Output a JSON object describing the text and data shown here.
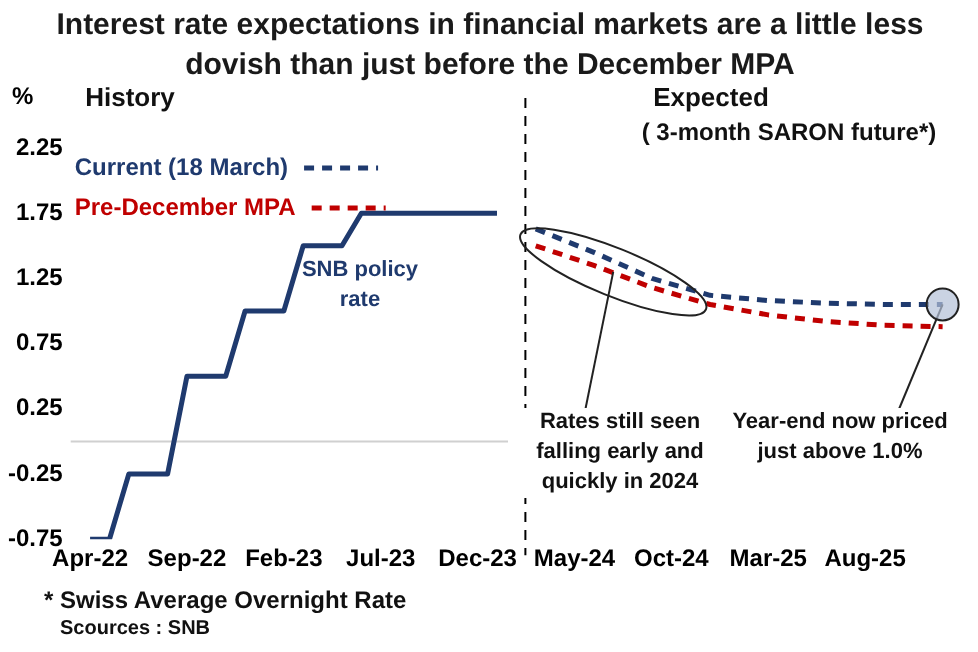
{
  "chart_data": {
    "type": "line",
    "title": "Interest rate expectations in financial markets are a little less dovish than just before the December MPA",
    "ylabel": "%",
    "annotations": [
      "History",
      "Expected",
      "( 3-month SARON future*)",
      "SNB policy rate",
      {
        "text": "Rates still seen falling early and quickly in 2024",
        "x": "2024-07",
        "y": 1.3
      },
      {
        "text": "Year-end now priced just above 1.0%",
        "x": "2025-12",
        "y": 1.05
      },
      "* Swiss Average Overnight Rate",
      "Scources : SNB"
    ],
    "series": [
      {
        "color": "#1f3a6e",
        "line_style": "solid",
        "x": [
          "2022-04",
          "2022-05",
          "2022-06",
          "2022-07",
          "2022-08",
          "2022-09",
          "2022-10",
          "2022-11",
          "2022-12",
          "2023-01",
          "2023-02",
          "2023-03",
          "2023-04",
          "2023-05",
          "2023-06",
          "2023-07",
          "2023-08",
          "2023-09",
          "2023-10",
          "2023-11",
          "2023-12",
          "2024-01"
        ],
        "values": [
          -0.75,
          -0.75,
          -0.25,
          -0.25,
          -0.25,
          0.5,
          0.5,
          0.5,
          1.0,
          1.0,
          1.0,
          1.5,
          1.5,
          1.5,
          1.75,
          1.75,
          1.75,
          1.75,
          1.75,
          1.75,
          1.75,
          1.75
        ]
      },
      {
        "name": "Current (18 March)",
        "color": "#1f3a6e",
        "line_style": "dashed",
        "x": [
          "2024-03",
          "2024-06",
          "2024-09",
          "2024-12",
          "2025-03",
          "2025-06",
          "2025-09",
          "2025-12"
        ],
        "values": [
          1.63,
          1.45,
          1.25,
          1.12,
          1.08,
          1.06,
          1.05,
          1.05
        ]
      },
      {
        "name": "Pre-December MPA",
        "color": "#c00000",
        "line_style": "dashed",
        "x": [
          "2024-03",
          "2024-06",
          "2024-09",
          "2024-12",
          "2025-03",
          "2025-06",
          "2025-09",
          "2025-12"
        ],
        "values": [
          1.5,
          1.35,
          1.18,
          1.05,
          0.97,
          0.92,
          0.89,
          0.88
        ]
      }
    ],
    "xlim": [
      "2022-03",
      "2026-01"
    ],
    "xticks": [
      {
        "value": "2022-04",
        "label": "Apr-22"
      },
      {
        "value": "2022-09",
        "label": "Sep-22"
      },
      {
        "value": "2023-02",
        "label": "Feb-23"
      },
      {
        "value": "2023-07",
        "label": "Jul-23"
      },
      {
        "value": "2023-12",
        "label": "Dec-23"
      },
      {
        "value": "2024-05",
        "label": "May-24"
      },
      {
        "value": "2024-10",
        "label": "Oct-24"
      },
      {
        "value": "2025-03",
        "label": "Mar-25"
      },
      {
        "value": "2025-08",
        "label": "Aug-25"
      }
    ],
    "ylim": [
      -0.75,
      2.25
    ],
    "yticks": [
      -0.75,
      -0.25,
      0.25,
      0.75,
      1.25,
      1.75,
      2.25
    ],
    "ref_lines": [
      {
        "axis": "x",
        "value": "2024-02-15",
        "color": "#000000",
        "line_style": "dashed"
      },
      {
        "axis": "y",
        "value": 0,
        "color": "#d0d0d0",
        "line_style": "solid"
      }
    ],
    "legend": "top left",
    "marker": "none",
    "grid": false
  }
}
